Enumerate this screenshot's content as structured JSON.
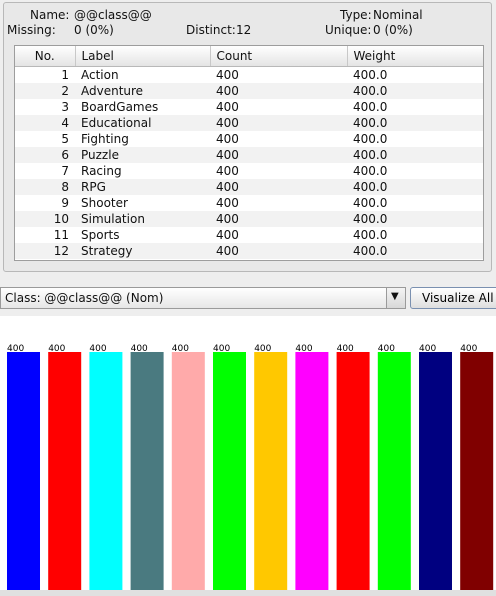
{
  "attribute": {
    "name_label": "Name:",
    "name_value": "@@class@@",
    "missing_label": "Missing:",
    "missing_value": "0 (0%)",
    "distinct_label": "Distinct:",
    "distinct_value": "12",
    "type_label": "Type:",
    "type_value": "Nominal",
    "unique_label": "Unique:",
    "unique_value": "0 (0%)"
  },
  "table": {
    "headers": [
      "No.",
      "Label",
      "Count",
      "Weight"
    ],
    "rows": [
      {
        "no": "1",
        "label": "Action",
        "count": "400",
        "weight": "400.0"
      },
      {
        "no": "2",
        "label": "Adventure",
        "count": "400",
        "weight": "400.0"
      },
      {
        "no": "3",
        "label": "BoardGames",
        "count": "400",
        "weight": "400.0"
      },
      {
        "no": "4",
        "label": "Educational",
        "count": "400",
        "weight": "400.0"
      },
      {
        "no": "5",
        "label": "Fighting",
        "count": "400",
        "weight": "400.0"
      },
      {
        "no": "6",
        "label": "Puzzle",
        "count": "400",
        "weight": "400.0"
      },
      {
        "no": "7",
        "label": "Racing",
        "count": "400",
        "weight": "400.0"
      },
      {
        "no": "8",
        "label": "RPG",
        "count": "400",
        "weight": "400.0"
      },
      {
        "no": "9",
        "label": "Shooter",
        "count": "400",
        "weight": "400.0"
      },
      {
        "no": "10",
        "label": "Simulation",
        "count": "400",
        "weight": "400.0"
      },
      {
        "no": "11",
        "label": "Sports",
        "count": "400",
        "weight": "400.0"
      },
      {
        "no": "12",
        "label": "Strategy",
        "count": "400",
        "weight": "400.0"
      }
    ]
  },
  "class_select": {
    "value": "Class: @@class@@ (Nom)",
    "arrow_icon": "triangle-down-icon"
  },
  "visualize_all_label": "Visualize All",
  "chart_data": {
    "type": "bar",
    "title": "",
    "xlabel": "",
    "ylabel": "",
    "ylim": [
      0,
      400
    ],
    "categories": [
      "Action",
      "Adventure",
      "BoardGames",
      "Educational",
      "Fighting",
      "Puzzle",
      "Racing",
      "RPG",
      "Shooter",
      "Simulation",
      "Sports",
      "Strategy"
    ],
    "values": [
      400,
      400,
      400,
      400,
      400,
      400,
      400,
      400,
      400,
      400,
      400,
      400
    ],
    "data_labels": [
      "400",
      "400",
      "400",
      "400",
      "400",
      "400",
      "400",
      "400",
      "400",
      "400",
      "400",
      "400"
    ],
    "colors": [
      "#0000ff",
      "#ff0000",
      "#00ffff",
      "#4a7a80",
      "#ffaaaa",
      "#00ff00",
      "#ffc800",
      "#ff00ff",
      "#ff0000",
      "#00ff00",
      "#000080",
      "#800000"
    ]
  }
}
